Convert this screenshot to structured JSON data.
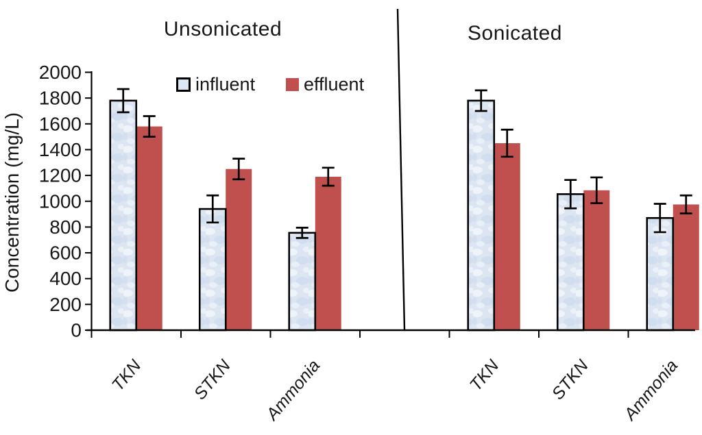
{
  "chart_data": {
    "type": "bar",
    "ylabel": "Concentration (mg/L)",
    "ylim": [
      0,
      2000
    ],
    "ytick_step": 200,
    "grid": false,
    "legend_position": "top-left-inside",
    "legend": [
      {
        "label": "influent",
        "fill": "#dce6f2",
        "border": "#000000"
      },
      {
        "label": "effluent",
        "fill": "#c0504d",
        "border": "#c0504d"
      }
    ],
    "sections": [
      {
        "title": "Unsonicated",
        "categories": [
          "TKN",
          "STKN",
          "Ammonia"
        ],
        "series": [
          {
            "name": "influent",
            "values": [
              1780,
              940,
              755
            ],
            "errors": [
              90,
              105,
              40
            ]
          },
          {
            "name": "effluent",
            "values": [
              1580,
              1250,
              1190
            ],
            "errors": [
              80,
              80,
              70
            ]
          }
        ]
      },
      {
        "title": "Sonicated",
        "categories": [
          "TKN",
          "STKN",
          "Ammonia"
        ],
        "series": [
          {
            "name": "influent",
            "values": [
              1780,
              1055,
              870
            ],
            "errors": [
              80,
              110,
              110
            ]
          },
          {
            "name": "effluent",
            "values": [
              1450,
              1085,
              975
            ],
            "errors": [
              105,
              100,
              70
            ]
          }
        ]
      }
    ]
  },
  "colors": {
    "influent_fill": "#dce6f2",
    "influent_texture": "#c9d8ec",
    "influent_border": "#000000",
    "effluent_fill": "#c0504d",
    "axis": "#000000",
    "error_bar": "#000000",
    "text": "#171717",
    "background": "#ffffff"
  }
}
